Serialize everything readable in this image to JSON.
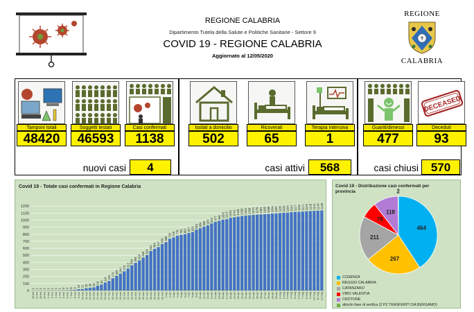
{
  "header": {
    "region": "REGIONE CALABRIA",
    "department": "Dipartimento Tutela della Salute e Politiche Sanitarie - Settore 9",
    "title": "COVID 19 - REGIONE CALABRIA",
    "updated": "Aggiornato al  12/05/2020"
  },
  "logo": {
    "top": "REGIONE",
    "bottom": "CALABRIA"
  },
  "tiles": [
    {
      "label": "Tamponi totali",
      "value": "48420",
      "icon": "lab-icon"
    },
    {
      "label": "Soggetti testati",
      "value": "46593",
      "icon": "people-grid-icon"
    },
    {
      "label": "Casi confermati",
      "value": "1138",
      "icon": "virus-people-icon"
    },
    {
      "label": "Isolati a domicilio",
      "value": "502",
      "icon": "house-icon"
    },
    {
      "label": "Ricoverati",
      "value": "65",
      "icon": "hospital-bed-icon"
    },
    {
      "label": "Terapia intensiva",
      "value": "1",
      "icon": "icu-icon"
    },
    {
      "label": "Guariti/dimessi",
      "value": "477",
      "icon": "recovered-icon"
    },
    {
      "label": "Deceduti",
      "value": "93",
      "icon": "deceased-stamp-icon"
    }
  ],
  "summary": {
    "nuovi_label": "nuovi casi",
    "nuovi_value": "4",
    "attivi_label": "casi attivi",
    "attivi_value": "568",
    "chiusi_label": "casi chiusi",
    "chiusi_value": "570"
  },
  "stamp_text": "DECEASED",
  "colors": {
    "yellow": "#fff200",
    "bar": "#4472c4",
    "chart_bg": "#cfe3c4"
  },
  "chart_data": [
    {
      "type": "bar",
      "title": "Covid 19 - Totale casi confermati in Regione Calabria",
      "xlabel": "",
      "ylabel": "",
      "ylim": [
        0,
        1300
      ],
      "yticks": [
        0,
        100,
        200,
        300,
        400,
        500,
        600,
        700,
        800,
        900,
        1000,
        1100,
        1200
      ],
      "grid": true,
      "categories": [
        "26-feb",
        "27-feb",
        "28-feb",
        "29-feb",
        "1-mar",
        "2-mar",
        "3-mar",
        "4-mar",
        "5-mar",
        "6-mar",
        "7-mar",
        "8-mar",
        "9-mar",
        "10-mar",
        "11-mar",
        "12-mar",
        "13-mar",
        "14-mar",
        "15-mar",
        "16-mar",
        "17-mar",
        "18-mar",
        "19-mar",
        "20-mar",
        "21-mar",
        "22-mar",
        "23-mar",
        "24-mar",
        "25-mar",
        "26-mar",
        "27-mar",
        "28-mar",
        "29-mar",
        "30-mar",
        "31-mar",
        "1-apr",
        "2-apr",
        "3-apr",
        "4-apr",
        "5-apr",
        "6-apr",
        "7-apr",
        "8-apr",
        "9-apr",
        "10-apr",
        "11-apr",
        "12-apr",
        "13-apr",
        "14-apr",
        "15-apr",
        "16-apr",
        "17-apr",
        "18-apr",
        "19-apr",
        "20-apr",
        "21-apr",
        "22-apr",
        "23-apr",
        "24-apr",
        "25-apr",
        "26-apr",
        "27-apr",
        "28-apr",
        "29-apr",
        "30-apr",
        "1-mag",
        "2-mag",
        "3-mag",
        "4-mag",
        "5-mag",
        "6-mag",
        "7-mag",
        "8-mag",
        "9-mag",
        "10-mag",
        "11-mag",
        "12-mag"
      ],
      "values": [
        1,
        1,
        1,
        1,
        1,
        1,
        1,
        1,
        3,
        4,
        8,
        9,
        19,
        21,
        33,
        38,
        45,
        68,
        84,
        114,
        135,
        174,
        209,
        240,
        273,
        312,
        359,
        393,
        428,
        468,
        504,
        561,
        594,
        617,
        659,
        688,
        736,
        755,
        778,
        791,
        801,
        817,
        831,
        864,
        884,
        906,
        925,
        952,
        977,
        991,
        1006,
        1013,
        1033,
        1041,
        1049,
        1058,
        1064,
        1069,
        1074,
        1078,
        1081,
        1085,
        1088,
        1094,
        1097,
        1100,
        1104,
        1106,
        1112,
        1117,
        1118,
        1121,
        1126,
        1128,
        1131,
        1134,
        1138
      ]
    },
    {
      "type": "pie",
      "title": "Covid 19 - Distribuzione casi confermati per provincia",
      "legend": "bottom",
      "slices": [
        {
          "name": "COSENZA",
          "value": 464,
          "color": "#00b0f0"
        },
        {
          "name": "REGGIO CALABRIA",
          "value": 267,
          "color": "#ffc000"
        },
        {
          "name": "CATANZARO",
          "value": 211,
          "color": "#a5a5a5"
        },
        {
          "name": "VIBO VALENTIA",
          "value": 76,
          "color": "#ff0000"
        },
        {
          "name": "CROTONE",
          "value": 118,
          "color": "#b27bd6"
        },
        {
          "name": "altro/in fase di verifica (2 PZ TRASFERITI DA BERGAMO)",
          "value": 2,
          "color": "#70ad47"
        }
      ]
    }
  ]
}
